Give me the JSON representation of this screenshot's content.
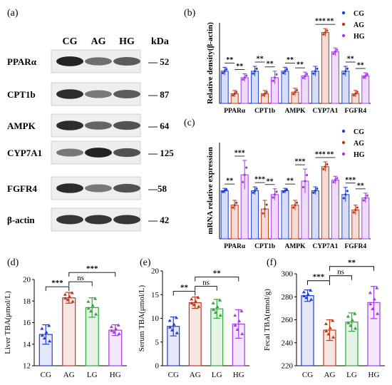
{
  "colors": {
    "CG": "#1f3fd6",
    "AG": "#c0391b",
    "LG": "#2fa83a",
    "HG": "#a43be8"
  },
  "panel_a": {
    "label": "(a)",
    "groups": [
      "CG",
      "AG",
      "HG"
    ],
    "kda_header": "kDa",
    "bands": [
      {
        "name": "PPARα",
        "kda": "— 52",
        "intensity": [
          0.95,
          0.55,
          0.65
        ]
      },
      {
        "name": "CPT1b",
        "kda": "— 87",
        "intensity": [
          0.9,
          0.5,
          0.65
        ]
      },
      {
        "name": "AMPK",
        "kda": "— 64",
        "intensity": [
          0.9,
          0.6,
          0.7
        ]
      },
      {
        "name": "CYP7A1",
        "kda": "— 125",
        "intensity": [
          0.5,
          0.95,
          0.7
        ]
      },
      {
        "name": "FGFR4",
        "kda": "—58",
        "intensity": [
          0.9,
          0.5,
          0.7
        ]
      },
      {
        "name": "β-actin",
        "kda": "— 42",
        "intensity": [
          0.85,
          0.85,
          0.85
        ]
      }
    ]
  },
  "chart_data": [
    {
      "panel": "(b)",
      "type": "bar",
      "ylabel": "Relative density(β-actin)",
      "ylim": [
        0,
        2.5
      ],
      "categories": [
        "PPARα",
        "CPT1b",
        "AMPK",
        "CYP7A1",
        "FGFR4"
      ],
      "series": [
        {
          "name": "CG",
          "values": [
            1.0,
            1.0,
            1.0,
            1.0,
            1.0
          ],
          "errors": [
            0.12,
            0.15,
            0.12,
            0.15,
            0.15
          ]
        },
        {
          "name": "AG",
          "values": [
            0.3,
            0.3,
            0.35,
            2.2,
            0.3
          ],
          "errors": [
            0.1,
            0.1,
            0.12,
            0.12,
            0.1
          ]
        },
        {
          "name": "HG",
          "values": [
            0.8,
            0.8,
            0.85,
            1.6,
            0.85
          ],
          "errors": [
            0.12,
            0.2,
            0.12,
            0.12,
            0.1
          ]
        }
      ],
      "significance": [
        [
          "**",
          "**"
        ],
        [
          "**",
          "**"
        ],
        [
          "**",
          "**"
        ],
        [
          "***",
          "**"
        ],
        [
          "**",
          "**"
        ]
      ],
      "legend": [
        "CG",
        "AG",
        "HG"
      ]
    },
    {
      "panel": "(c)",
      "type": "bar",
      "ylabel": "mRNA relative expression",
      "ylim": [
        0,
        2.0
      ],
      "categories": [
        "PPARα",
        "CPT1b",
        "AMPK",
        "CYP7A1",
        "FGFR4"
      ],
      "series": [
        {
          "name": "CG",
          "values": [
            1.0,
            1.0,
            1.0,
            1.0,
            0.92
          ],
          "errors": [
            0.05,
            0.08,
            0.05,
            0.08,
            0.15
          ]
        },
        {
          "name": "AG",
          "values": [
            0.7,
            0.62,
            0.7,
            1.5,
            0.6
          ],
          "errors": [
            0.1,
            0.18,
            0.1,
            0.1,
            0.1
          ]
        },
        {
          "name": "HG",
          "values": [
            1.33,
            0.92,
            1.2,
            1.22,
            0.85
          ],
          "errors": [
            0.3,
            0.12,
            0.25,
            0.08,
            0.1
          ]
        }
      ],
      "significance": [
        [
          "**",
          "***"
        ],
        [
          "***",
          "**"
        ],
        [
          "**",
          "***"
        ],
        [
          "***",
          "**"
        ],
        [
          "***",
          "**"
        ]
      ],
      "legend": [
        "CG",
        "AG",
        "HG"
      ]
    },
    {
      "panel": "(d)",
      "type": "bar",
      "ylabel": "Liver TBA(μmol/L)",
      "ylim": [
        12,
        20
      ],
      "yticks": [
        12,
        14,
        16,
        18,
        20
      ],
      "categories": [
        "CG",
        "AG",
        "LG",
        "HG"
      ],
      "values": [
        14.9,
        18.3,
        17.4,
        15.3
      ],
      "errors": [
        0.9,
        0.5,
        0.9,
        0.5
      ],
      "significance": [
        {
          "from": 0,
          "to": 1,
          "label": "***"
        },
        {
          "from": 1,
          "to": 2,
          "label": "ns"
        },
        {
          "from": 1,
          "to": 3,
          "label": "***"
        }
      ]
    },
    {
      "panel": "(e)",
      "type": "bar",
      "ylabel": "Serum TBA(μmol/L)",
      "ylim": [
        0,
        20
      ],
      "yticks": [
        0,
        5,
        10,
        15,
        20
      ],
      "categories": [
        "CG",
        "AG",
        "LG",
        "HG"
      ],
      "values": [
        8.3,
        13.3,
        12.0,
        8.8
      ],
      "errors": [
        2.0,
        1.2,
        2.0,
        3.0
      ],
      "significance": [
        {
          "from": 0,
          "to": 1,
          "label": "**"
        },
        {
          "from": 1,
          "to": 2,
          "label": "ns"
        },
        {
          "from": 1,
          "to": 3,
          "label": "**"
        }
      ]
    },
    {
      "panel": "(f)",
      "type": "bar",
      "ylabel": "Fecal TBA(nmol/g)",
      "ylim": [
        220,
        300
      ],
      "yticks": [
        220,
        240,
        260,
        280,
        300
      ],
      "categories": [
        "CG",
        "AG",
        "LG",
        "HG"
      ],
      "values": [
        281,
        251,
        258,
        275
      ],
      "errors": [
        5,
        9,
        8,
        14
      ],
      "significance": [
        {
          "from": 0,
          "to": 1,
          "label": "***"
        },
        {
          "from": 1,
          "to": 2,
          "label": "ns"
        },
        {
          "from": 1,
          "to": 3,
          "label": "**"
        }
      ]
    }
  ]
}
